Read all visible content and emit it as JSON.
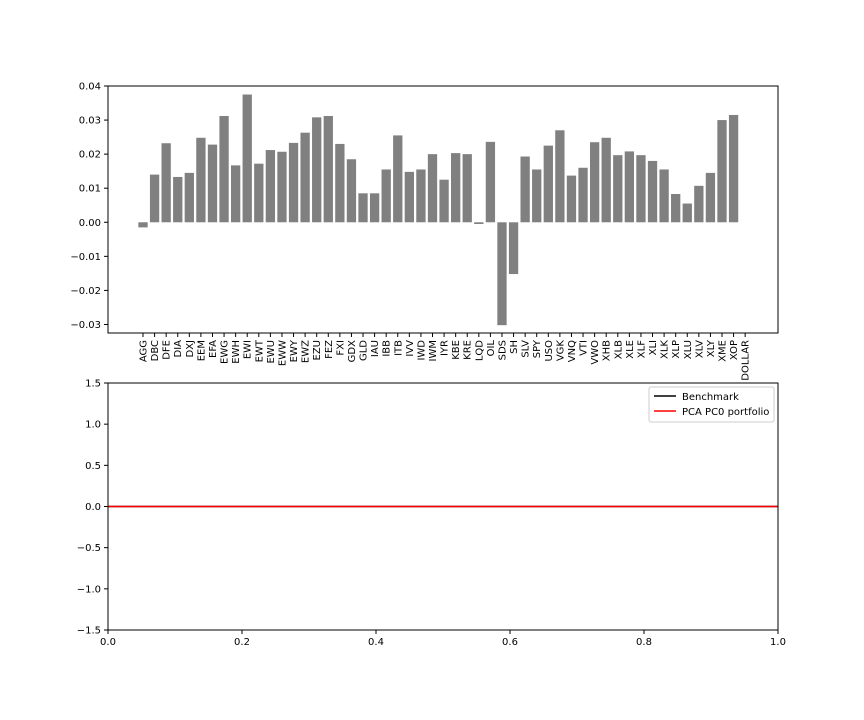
{
  "chart_data": [
    {
      "type": "bar",
      "title": "",
      "xlabel": "",
      "ylabel": "",
      "categories": [
        "AGG",
        "DBC",
        "DFE",
        "DIA",
        "DXJ",
        "EEM",
        "EFA",
        "EWG",
        "EWH",
        "EWI",
        "EWT",
        "EWU",
        "EWW",
        "EWY",
        "EWZ",
        "EZU",
        "FEZ",
        "FXI",
        "GDX",
        "GLD",
        "IAU",
        "IBB",
        "ITB",
        "IVV",
        "IWD",
        "IWM",
        "IYR",
        "KBE",
        "KRE",
        "LQD",
        "OIL",
        "SDS",
        "SH",
        "SLV",
        "SPY",
        "USO",
        "VGK",
        "VNQ",
        "VTI",
        "VWO",
        "XHB",
        "XLB",
        "XLE",
        "XLF",
        "XLI",
        "XLK",
        "XLP",
        "XLU",
        "XLV",
        "XLY",
        "XME",
        "XOP",
        "DOLLAR"
      ],
      "values": [
        -0.0015,
        0.014,
        0.0232,
        0.0133,
        0.0145,
        0.0248,
        0.0228,
        0.0312,
        0.0167,
        0.0375,
        0.0172,
        0.0212,
        0.0207,
        0.0233,
        0.0263,
        0.0308,
        0.0312,
        0.023,
        0.0185,
        0.0085,
        0.0085,
        0.0155,
        0.0255,
        0.0148,
        0.0155,
        0.02,
        0.0125,
        0.0203,
        0.02,
        -0.0005,
        0.0236,
        -0.0302,
        -0.0152,
        0.0193,
        0.0155,
        0.0225,
        0.027,
        0.0137,
        0.016,
        0.0235,
        0.0248,
        0.0197,
        0.0208,
        0.0197,
        0.018,
        0.0155,
        0.0083,
        0.0055,
        0.0107,
        0.0145,
        0.03,
        0.0315,
        0.0
      ],
      "yticks": [
        "0.04",
        "0.03",
        "0.02",
        "0.01",
        "0.00",
        "−0.01",
        "−0.02",
        "−0.03"
      ],
      "ytick_values": [
        0.04,
        0.03,
        0.02,
        0.01,
        0.0,
        -0.01,
        -0.02,
        -0.03
      ],
      "ylim": [
        -0.0325,
        0.04
      ],
      "grid": false
    },
    {
      "type": "line",
      "title": "",
      "xlabel": "",
      "ylabel": "",
      "xlim": [
        0.0,
        1.0
      ],
      "ylim": [
        -1.5,
        1.5
      ],
      "xticks": [
        "0.0",
        "0.2",
        "0.4",
        "0.6",
        "0.8",
        "1.0"
      ],
      "xtick_values": [
        0.0,
        0.2,
        0.4,
        0.6,
        0.8,
        1.0
      ],
      "yticks": [
        "1.5",
        "1.0",
        "0.5",
        "0.0",
        "−0.5",
        "−1.0",
        "−1.5"
      ],
      "ytick_values": [
        1.5,
        1.0,
        0.5,
        0.0,
        -0.5,
        -1.0,
        -1.5
      ],
      "series": [
        {
          "name": "Benchmark",
          "color": "#000000",
          "x": [
            0.0,
            1.0
          ],
          "y": [
            0.0,
            0.0
          ]
        },
        {
          "name": "PCA PC0 portfolio",
          "color": "#ff0000",
          "x": [
            0.0,
            1.0
          ],
          "y": [
            0.0,
            0.0
          ]
        }
      ],
      "legend_position": "top-right",
      "grid": false
    }
  ]
}
